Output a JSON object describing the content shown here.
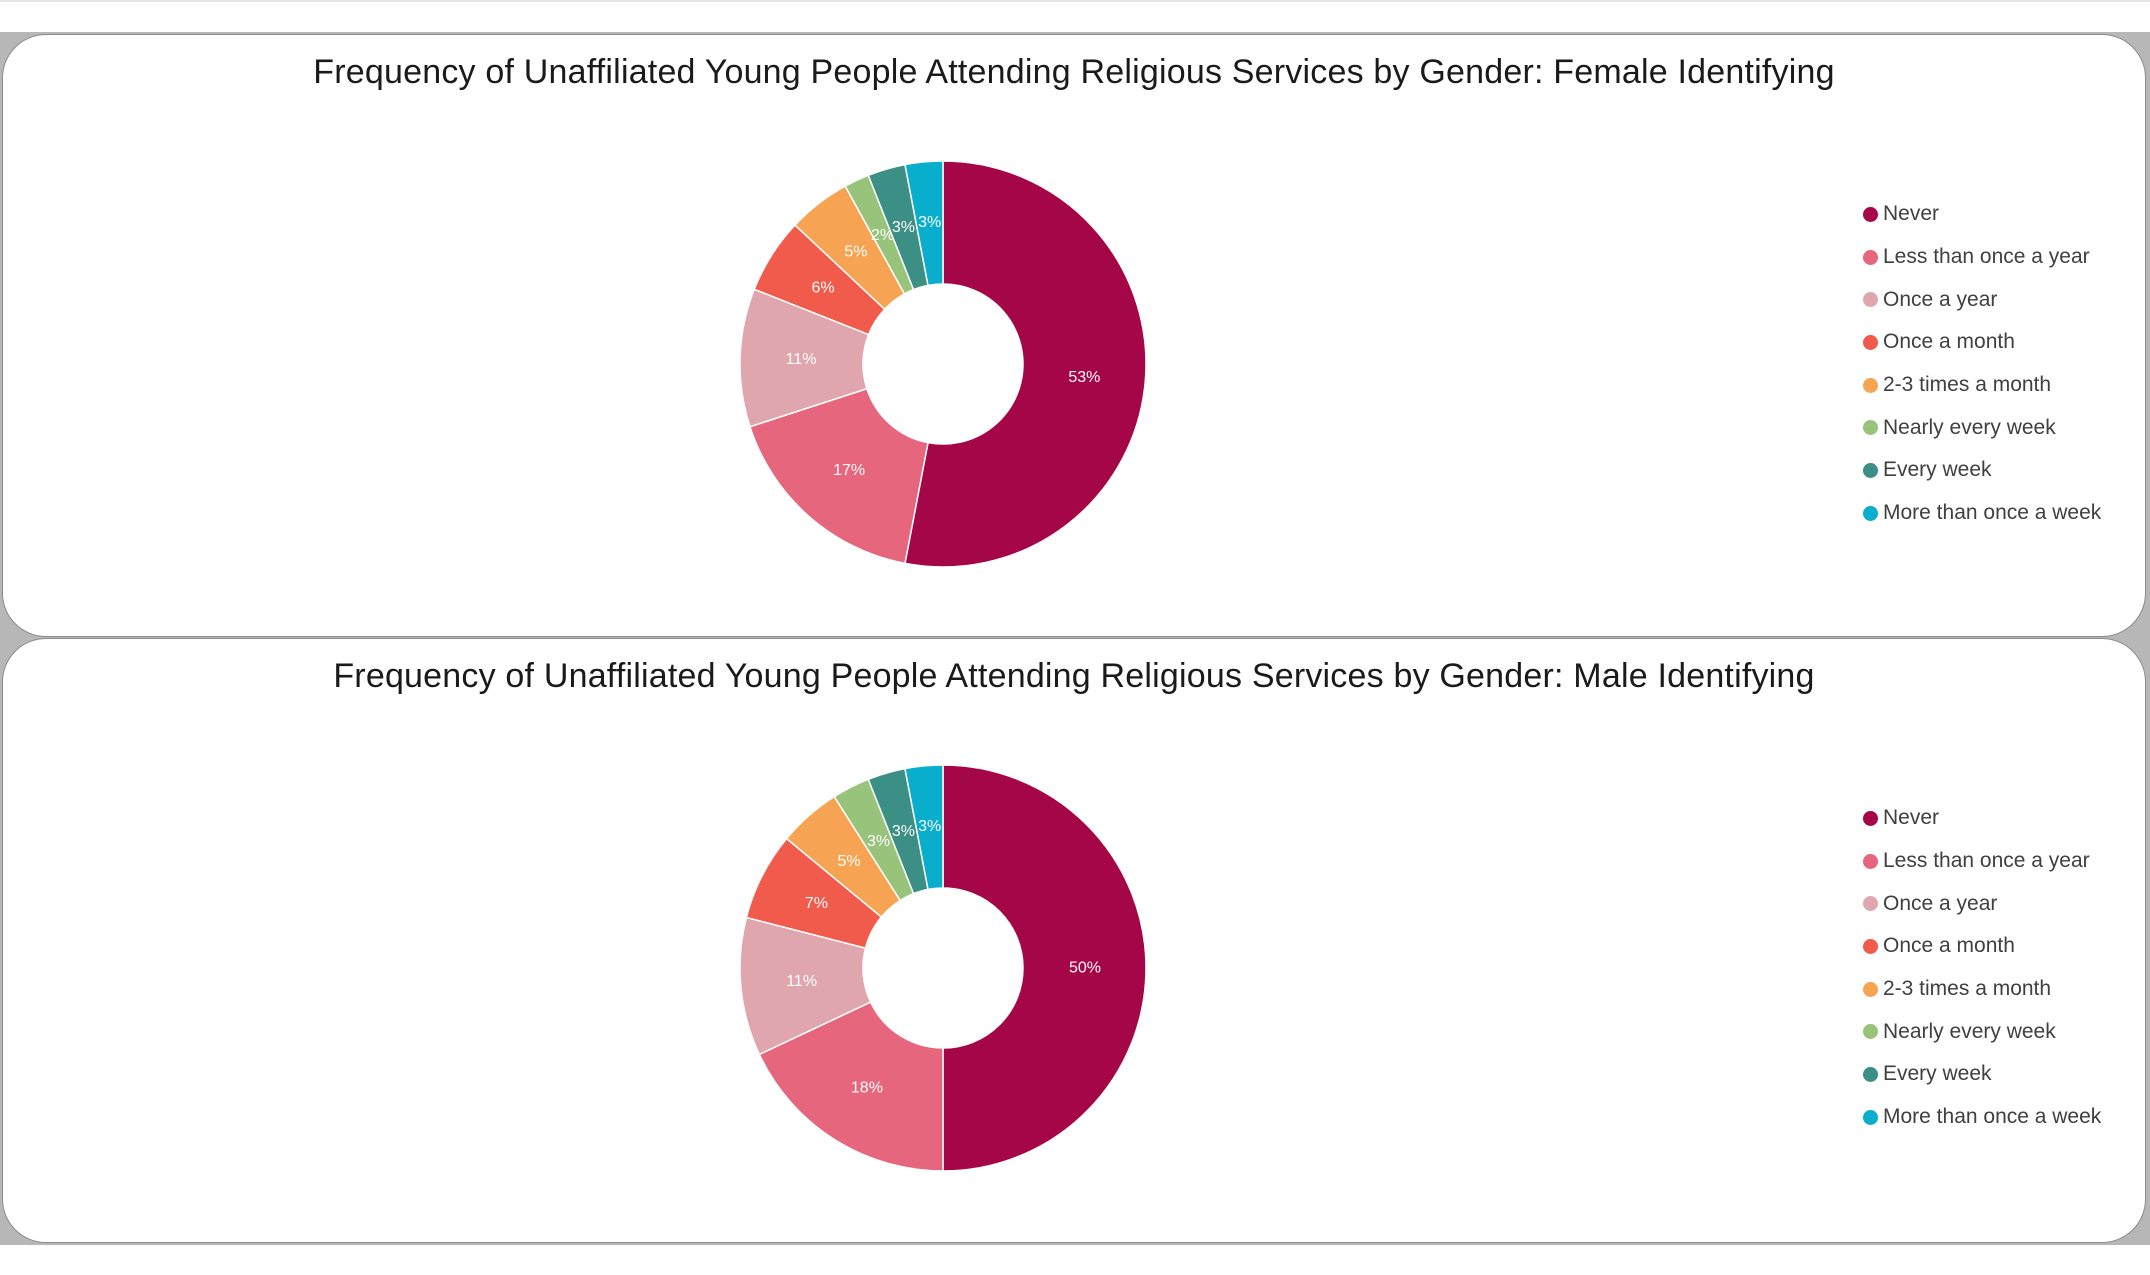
{
  "chart_data": [
    {
      "type": "pie",
      "title": "Frequency of Unaffiliated Young People Attending Religious Services by Gender: Female Identifying",
      "legend_position": "right",
      "categories": [
        "Never",
        "Less than once a year",
        "Once a year",
        "Once a month",
        "2-3 times a month",
        "Nearly every week",
        "Every week",
        "More than once a week"
      ],
      "values": [
        53,
        17,
        11,
        6,
        5,
        2,
        3,
        3
      ],
      "value_labels": [
        "53%",
        "17%",
        "11%",
        "6%",
        "5%",
        "2%",
        "3%",
        "3%"
      ],
      "colors": [
        "#a50648",
        "#e6667e",
        "#e0a6ae",
        "#f05b4b",
        "#f6a353",
        "#97c47a",
        "#3b8f84",
        "#09aecd"
      ]
    },
    {
      "type": "pie",
      "title": "Frequency of Unaffiliated Young People Attending Religious Services by Gender: Male Identifying",
      "legend_position": "right",
      "categories": [
        "Never",
        "Less than once a year",
        "Once a year",
        "Once a month",
        "2-3 times a month",
        "Nearly every week",
        "Every week",
        "More than once a week"
      ],
      "values": [
        50,
        18,
        11,
        7,
        5,
        3,
        3,
        3
      ],
      "value_labels": [
        "50%",
        "18%",
        "11%",
        "7%",
        "5%",
        "3%",
        "3%",
        "3%"
      ],
      "colors": [
        "#a50648",
        "#e6667e",
        "#e0a6ae",
        "#f05b4b",
        "#f6a353",
        "#97c47a",
        "#3b8f84",
        "#09aecd"
      ]
    }
  ]
}
